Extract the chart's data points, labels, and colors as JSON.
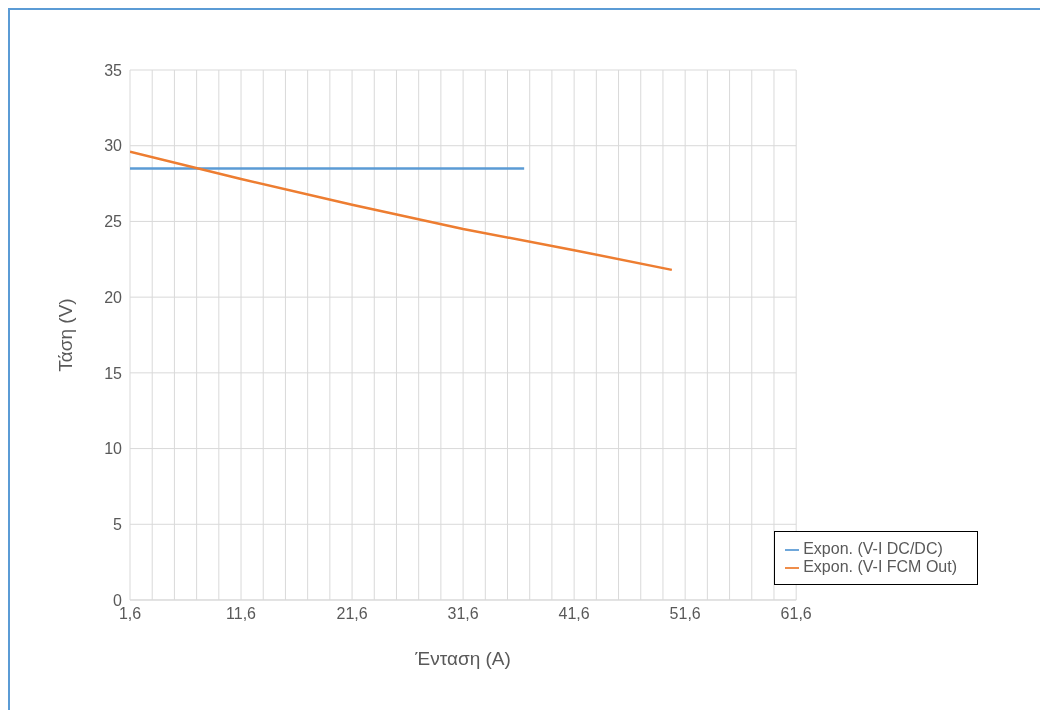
{
  "chart_data": {
    "type": "line",
    "xlabel": "Ένταση (A)",
    "ylabel": "Τάση (V)",
    "series": [
      {
        "name": "Expon. (V-I DC/DC)",
        "color": "#5b9bd5",
        "x": [
          1.6,
          37.1
        ],
        "values": [
          28.5,
          28.5
        ]
      },
      {
        "name": "Expon. (V-I FCM Out)",
        "color": "#ed7d31",
        "x": [
          1.6,
          11.6,
          21.6,
          31.6,
          41.6,
          50.4
        ],
        "values": [
          29.6,
          27.8,
          26.1,
          24.5,
          23.1,
          21.8
        ]
      }
    ],
    "xlim": [
      1.6,
      61.6
    ],
    "xticks": [
      {
        "value": 1.6,
        "label": "1,6"
      },
      {
        "value": 3.6,
        "label": null
      },
      {
        "value": 5.6,
        "label": null
      },
      {
        "value": 7.6,
        "label": null
      },
      {
        "value": 9.6,
        "label": null
      },
      {
        "value": 11.6,
        "label": "11,6"
      },
      {
        "value": 13.6,
        "label": null
      },
      {
        "value": 15.6,
        "label": null
      },
      {
        "value": 17.6,
        "label": null
      },
      {
        "value": 19.6,
        "label": null
      },
      {
        "value": 21.6,
        "label": "21,6"
      },
      {
        "value": 23.6,
        "label": null
      },
      {
        "value": 25.6,
        "label": null
      },
      {
        "value": 27.6,
        "label": null
      },
      {
        "value": 29.6,
        "label": null
      },
      {
        "value": 31.6,
        "label": "31,6"
      },
      {
        "value": 33.6,
        "label": null
      },
      {
        "value": 35.6,
        "label": null
      },
      {
        "value": 37.6,
        "label": null
      },
      {
        "value": 39.6,
        "label": null
      },
      {
        "value": 41.6,
        "label": "41,6"
      },
      {
        "value": 43.6,
        "label": null
      },
      {
        "value": 45.6,
        "label": null
      },
      {
        "value": 47.6,
        "label": null
      },
      {
        "value": 49.6,
        "label": null
      },
      {
        "value": 51.6,
        "label": "51,6"
      },
      {
        "value": 53.6,
        "label": null
      },
      {
        "value": 55.6,
        "label": null
      },
      {
        "value": 57.6,
        "label": null
      },
      {
        "value": 59.6,
        "label": null
      },
      {
        "value": 61.6,
        "label": "61,6"
      }
    ],
    "ylim": [
      0,
      35
    ],
    "yticks": [
      0,
      5,
      10,
      15,
      20,
      25,
      30,
      35
    ],
    "grid": true,
    "legend": "bottom right",
    "marker": "none",
    "line_style": "solid"
  }
}
